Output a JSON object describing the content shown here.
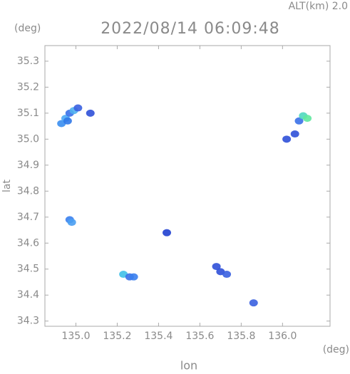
{
  "chart_data": {
    "type": "scatter",
    "title": "2022/08/14 06:09:48",
    "subtitle": "ALT(km) 2.0",
    "x_label": "lon",
    "y_label": "lat",
    "x_unit": "(deg)",
    "y_unit": "(deg)",
    "x": [
      134.93,
      134.95,
      134.97,
      134.99,
      135.01,
      134.96,
      135.07,
      134.97,
      134.98,
      135.23,
      135.26,
      135.28,
      135.44,
      135.68,
      135.7,
      135.73,
      135.86,
      136.02,
      136.06,
      136.08,
      136.1,
      136.12
    ],
    "values": [
      35.06,
      35.08,
      35.1,
      35.11,
      35.12,
      35.07,
      35.1,
      34.69,
      34.68,
      34.48,
      34.47,
      34.47,
      34.64,
      34.51,
      34.49,
      34.48,
      34.37,
      35.0,
      35.02,
      35.07,
      35.09,
      35.08
    ],
    "colors": [
      "#3a8ef0",
      "#4aa8f5",
      "#3a70e8",
      "#50b0f0",
      "#3a60e0",
      "#2f78e8",
      "#2f50d8",
      "#3a80ee",
      "#4a9ef2",
      "#40c0e8",
      "#3a70e8",
      "#3a80ee",
      "#2040d0",
      "#2f50d8",
      "#2f50d8",
      "#3a60e0",
      "#3a60e0",
      "#2f50d8",
      "#2f50d8",
      "#3a70e8",
      "#50d8c0",
      "#60e8a0"
    ],
    "xlim": [
      134.85,
      136.23
    ],
    "ylim": [
      34.28,
      35.36
    ],
    "xticks": [
      {
        "value": 135.0,
        "label": "135.0"
      },
      135.2,
      135.4,
      135.6,
      135.8,
      {
        "value": 136.0,
        "label": "136.0"
      }
    ],
    "yticks": [
      34.3,
      34.4,
      34.5,
      34.6,
      34.7,
      34.8,
      34.9,
      {
        "value": 35.0,
        "label": "35.0"
      },
      35.1,
      35.2,
      35.3
    ]
  }
}
